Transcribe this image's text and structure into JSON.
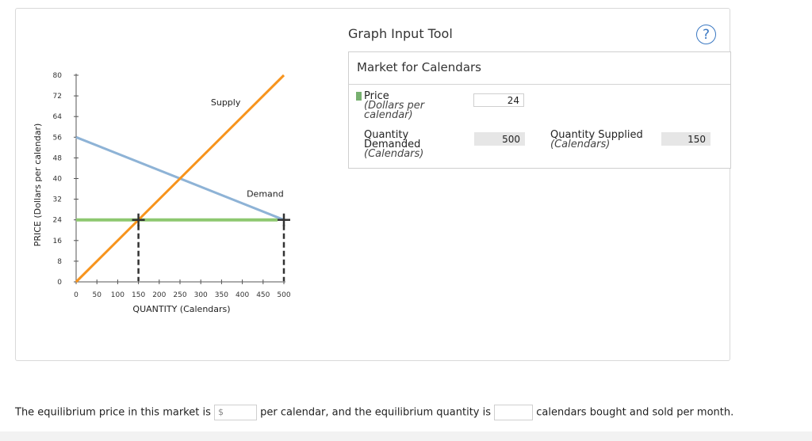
{
  "tool": {
    "title": "Graph Input Tool",
    "help_label": "?"
  },
  "market": {
    "title": "Market for Calendars",
    "price_label": "Price",
    "price_unit": "(Dollars per calendar)",
    "price_value": "24",
    "qd_label": "Quantity Demanded",
    "qd_unit": "(Calendars)",
    "qd_value": "500",
    "qs_label": "Quantity Supplied",
    "qs_unit": "(Calendars)",
    "qs_value": "150"
  },
  "question": {
    "part1": "The equilibrium price in this market is",
    "dollar_sign": "$",
    "part2": "per calendar, and the equilibrium quantity is",
    "part3": "calendars bought and sold per month."
  },
  "chart_data": {
    "type": "line",
    "xlabel": "QUANTITY (Calendars)",
    "ylabel": "PRICE (Dollars per calendar)",
    "xlim": [
      0,
      500
    ],
    "ylim": [
      0,
      80
    ],
    "x_ticks": [
      0,
      50,
      100,
      150,
      200,
      250,
      300,
      350,
      400,
      450,
      500
    ],
    "y_ticks": [
      0,
      8,
      16,
      24,
      32,
      40,
      48,
      56,
      64,
      72,
      80
    ],
    "series": [
      {
        "name": "Supply",
        "color": "#f7941d",
        "points": [
          [
            0,
            0
          ],
          [
            500,
            80
          ]
        ]
      },
      {
        "name": "Demand",
        "color": "#8eb3d6",
        "points": [
          [
            0,
            56
          ],
          [
            500,
            24
          ]
        ]
      }
    ],
    "price_line": {
      "y": 24,
      "color": "#8dc870"
    },
    "markers": [
      {
        "x": 150,
        "y": 24
      },
      {
        "x": 500,
        "y": 24
      }
    ]
  }
}
